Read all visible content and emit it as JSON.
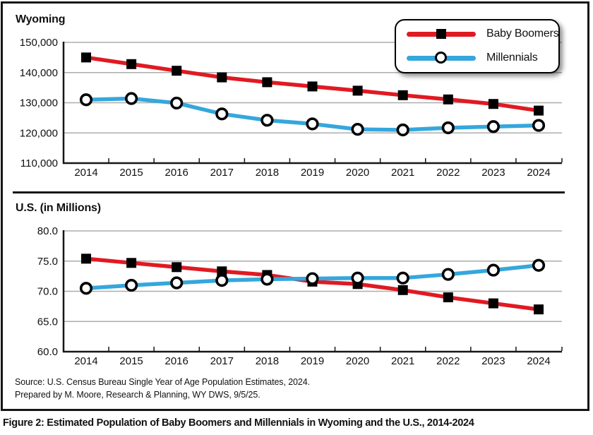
{
  "figure": {
    "caption": "Figure 2: Estimated Population of Baby Boomers and Millennials in Wyoming and the U.S., 2014-2024",
    "source_line1": "Source: U.S. Census Bureau Single Year of Age Population Estimates, 2024.",
    "source_line2": "Prepared by M. Moore, Research & Planning, WY DWS, 9/5/25."
  },
  "colors": {
    "baby_boomers": "#E01A22",
    "millennials": "#35A7DC",
    "gridline": "#ADADAD",
    "axis": "#161616"
  },
  "legend": {
    "position": "top-right",
    "items": [
      {
        "label": "Baby Boomers",
        "color": "#E01A22",
        "marker": "square"
      },
      {
        "label": "Millennials",
        "color": "#35A7DC",
        "marker": "circle"
      }
    ]
  },
  "chart_data": [
    {
      "type": "line",
      "title": "Wyoming",
      "x": [
        "2014",
        "2015",
        "2016",
        "2017",
        "2018",
        "2019",
        "2020",
        "2021",
        "2022",
        "2023",
        "2024"
      ],
      "ylim": [
        110000,
        150000
      ],
      "grid": true,
      "y_ticks": [
        {
          "value": 150000,
          "label": "150,000"
        },
        {
          "value": 140000,
          "label": "140,000"
        },
        {
          "value": 130000,
          "label": "130,000"
        },
        {
          "value": 120000,
          "label": "120,000"
        },
        {
          "value": 110000,
          "label": "110,000"
        }
      ],
      "series": [
        {
          "name": "Baby Boomers",
          "color": "#E01A22",
          "marker": "square",
          "values": [
            145000,
            142800,
            140600,
            138400,
            136800,
            135400,
            134000,
            132500,
            131100,
            129600,
            127400
          ]
        },
        {
          "name": "Millennials",
          "color": "#35A7DC",
          "marker": "circle",
          "values": [
            131000,
            131400,
            129900,
            126300,
            124200,
            123000,
            121200,
            121000,
            121700,
            122100,
            122500
          ]
        }
      ]
    },
    {
      "type": "line",
      "title": "U.S. (in Millions)",
      "x": [
        "2014",
        "2015",
        "2016",
        "2017",
        "2018",
        "2019",
        "2020",
        "2021",
        "2022",
        "2023",
        "2024"
      ],
      "ylim": [
        60.0,
        80.0
      ],
      "grid": true,
      "y_ticks": [
        {
          "value": 80.0,
          "label": "80.0"
        },
        {
          "value": 75.0,
          "label": "75.0"
        },
        {
          "value": 70.0,
          "label": "70.0"
        },
        {
          "value": 65.0,
          "label": "65.0"
        },
        {
          "value": 60.0,
          "label": "60.0"
        }
      ],
      "series": [
        {
          "name": "Baby Boomers",
          "color": "#E01A22",
          "marker": "square",
          "values": [
            75.4,
            74.7,
            74.0,
            73.3,
            72.7,
            71.6,
            71.2,
            70.2,
            69.0,
            68.0,
            67.0
          ]
        },
        {
          "name": "Millennials",
          "color": "#35A7DC",
          "marker": "circle",
          "values": [
            70.5,
            71.0,
            71.4,
            71.8,
            72.0,
            72.1,
            72.2,
            72.2,
            72.8,
            73.5,
            74.3
          ]
        }
      ]
    }
  ]
}
